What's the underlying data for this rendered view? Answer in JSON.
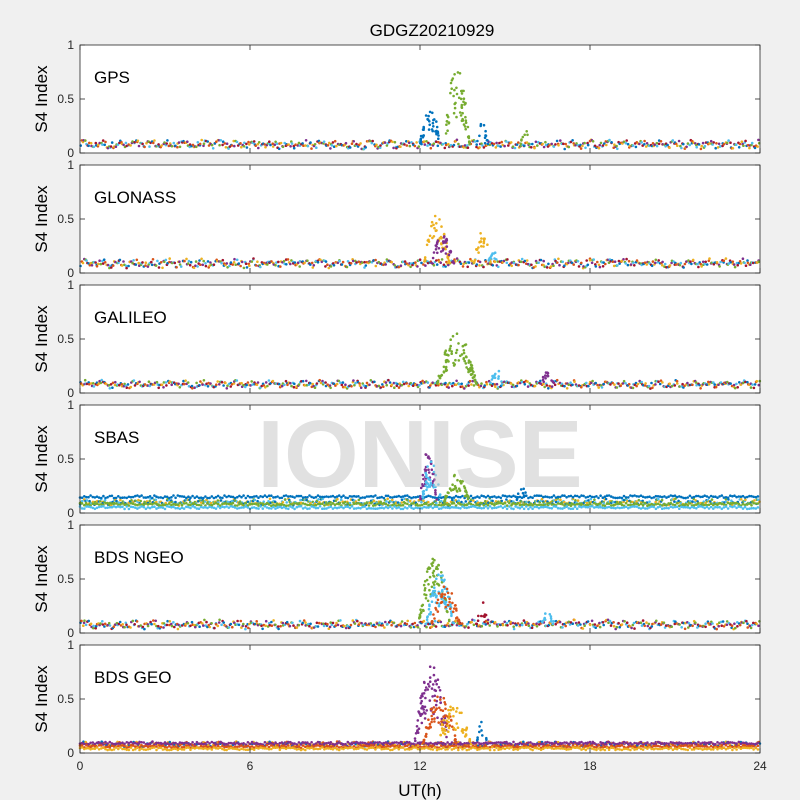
{
  "figure": {
    "title": "GDGZ20210929",
    "xlabel": "UT(h)",
    "watermark": "IONISE",
    "background_color": "#f0f0f0"
  },
  "chart_data": [
    {
      "type": "scatter",
      "label": "GPS",
      "ylabel": "S4 Index",
      "xlim": [
        0,
        24
      ],
      "ylim": [
        0,
        1
      ],
      "x_ticks": [
        0,
        6,
        12,
        18,
        24
      ],
      "y_ticks": [
        0,
        0.5,
        1
      ],
      "baseline": 0.08,
      "noise": 0.03,
      "series_colors": [
        "#0072BD",
        "#D95319",
        "#EDB120",
        "#7E2F8E",
        "#77AC30",
        "#4DBEEE",
        "#A2142F"
      ],
      "bursts": [
        {
          "t": 12.35,
          "w": 0.35,
          "peak": 0.45,
          "color": "#0072BD",
          "n": 40
        },
        {
          "t": 13.3,
          "w": 0.45,
          "peak": 0.8,
          "color": "#77AC30",
          "n": 60
        },
        {
          "t": 14.2,
          "w": 0.2,
          "peak": 0.3,
          "color": "#0072BD",
          "n": 12
        },
        {
          "t": 15.7,
          "w": 0.15,
          "peak": 0.25,
          "color": "#77AC30",
          "n": 8
        }
      ]
    },
    {
      "type": "scatter",
      "label": "GLONASS",
      "ylabel": "S4 Index",
      "xlim": [
        0,
        24
      ],
      "ylim": [
        0,
        1
      ],
      "x_ticks": [
        0,
        6,
        12,
        18,
        24
      ],
      "y_ticks": [
        0,
        0.5,
        1
      ],
      "baseline": 0.09,
      "noise": 0.03,
      "series_colors": [
        "#0072BD",
        "#D95319",
        "#EDB120",
        "#7E2F8E",
        "#77AC30",
        "#4DBEEE",
        "#A2142F"
      ],
      "bursts": [
        {
          "t": 12.6,
          "w": 0.45,
          "peak": 0.55,
          "color": "#EDB120",
          "n": 45
        },
        {
          "t": 12.8,
          "w": 0.4,
          "peak": 0.35,
          "color": "#7E2F8E",
          "n": 35
        },
        {
          "t": 14.2,
          "w": 0.3,
          "peak": 0.4,
          "color": "#EDB120",
          "n": 25
        },
        {
          "t": 14.6,
          "w": 0.2,
          "peak": 0.22,
          "color": "#4DBEEE",
          "n": 10
        }
      ]
    },
    {
      "type": "scatter",
      "label": "GALILEO",
      "ylabel": "S4 Index",
      "xlim": [
        0,
        24
      ],
      "ylim": [
        0,
        1
      ],
      "x_ticks": [
        0,
        6,
        12,
        18,
        24
      ],
      "y_ticks": [
        0,
        0.5,
        1
      ],
      "baseline": 0.08,
      "noise": 0.025,
      "series_colors": [
        "#0072BD",
        "#D95319",
        "#EDB120",
        "#7E2F8E",
        "#77AC30",
        "#4DBEEE",
        "#A2142F"
      ],
      "bursts": [
        {
          "t": 13.3,
          "w": 0.7,
          "peak": 0.55,
          "color": "#77AC30",
          "n": 90
        },
        {
          "t": 14.7,
          "w": 0.2,
          "peak": 0.25,
          "color": "#4DBEEE",
          "n": 12
        },
        {
          "t": 16.5,
          "w": 0.25,
          "peak": 0.22,
          "color": "#7E2F8E",
          "n": 15
        }
      ]
    },
    {
      "type": "scatter",
      "label": "SBAS",
      "ylabel": "S4 Index",
      "xlim": [
        0,
        24
      ],
      "ylim": [
        0,
        1
      ],
      "x_ticks": [
        0,
        6,
        12,
        18,
        24
      ],
      "y_ticks": [
        0,
        0.5,
        1
      ],
      "baseline": 0.1,
      "noise": 0.02,
      "series_colors": [
        "#0072BD",
        "#77AC30",
        "#4DBEEE",
        "#EDB120"
      ],
      "bands": [
        {
          "y": 0.15,
          "color": "#0072BD"
        },
        {
          "y": 0.08,
          "color": "#77AC30"
        },
        {
          "y": 0.05,
          "color": "#4DBEEE"
        }
      ],
      "bursts": [
        {
          "t": 12.3,
          "w": 0.3,
          "peak": 0.6,
          "color": "#7E2F8E",
          "n": 40
        },
        {
          "t": 12.4,
          "w": 0.35,
          "peak": 0.5,
          "color": "#4DBEEE",
          "n": 35
        },
        {
          "t": 13.3,
          "w": 0.45,
          "peak": 0.38,
          "color": "#77AC30",
          "n": 45
        },
        {
          "t": 15.6,
          "w": 0.2,
          "peak": 0.25,
          "color": "#0072BD",
          "n": 10
        }
      ]
    },
    {
      "type": "scatter",
      "label": "BDS NGEO",
      "ylabel": "S4 Index",
      "xlim": [
        0,
        24
      ],
      "ylim": [
        0,
        1
      ],
      "x_ticks": [
        0,
        6,
        12,
        18,
        24
      ],
      "y_ticks": [
        0,
        0.5,
        1
      ],
      "baseline": 0.08,
      "noise": 0.03,
      "series_colors": [
        "#0072BD",
        "#D95319",
        "#EDB120",
        "#7E2F8E",
        "#77AC30",
        "#4DBEEE",
        "#A2142F"
      ],
      "bursts": [
        {
          "t": 12.5,
          "w": 0.55,
          "peak": 0.7,
          "color": "#77AC30",
          "n": 70
        },
        {
          "t": 12.7,
          "w": 0.5,
          "peak": 0.55,
          "color": "#4DBEEE",
          "n": 60
        },
        {
          "t": 12.9,
          "w": 0.5,
          "peak": 0.45,
          "color": "#D95319",
          "n": 45
        },
        {
          "t": 14.2,
          "w": 0.2,
          "peak": 0.3,
          "color": "#A2142F",
          "n": 10
        },
        {
          "t": 16.5,
          "w": 0.2,
          "peak": 0.22,
          "color": "#4DBEEE",
          "n": 12
        }
      ]
    },
    {
      "type": "scatter",
      "label": "BDS GEO",
      "ylabel": "S4 Index",
      "xlim": [
        0,
        24
      ],
      "ylim": [
        0,
        1
      ],
      "x_ticks": [
        0,
        6,
        12,
        18,
        24
      ],
      "y_ticks": [
        0,
        0.5,
        1
      ],
      "baseline": 0.08,
      "noise": 0.012,
      "series_colors": [
        "#7E2F8E",
        "#EDB120",
        "#D95319",
        "#0072BD"
      ],
      "bands": [
        {
          "y": 0.09,
          "color": "#7E2F8E"
        },
        {
          "y": 0.06,
          "color": "#D95319"
        },
        {
          "y": 0.04,
          "color": "#EDB120"
        }
      ],
      "bursts": [
        {
          "t": 12.4,
          "w": 0.6,
          "peak": 0.82,
          "color": "#7E2F8E",
          "n": 80
        },
        {
          "t": 12.7,
          "w": 0.6,
          "peak": 0.55,
          "color": "#D95319",
          "n": 60
        },
        {
          "t": 13.2,
          "w": 0.6,
          "peak": 0.45,
          "color": "#EDB120",
          "n": 50
        },
        {
          "t": 14.2,
          "w": 0.2,
          "peak": 0.3,
          "color": "#0072BD",
          "n": 10
        }
      ]
    }
  ]
}
